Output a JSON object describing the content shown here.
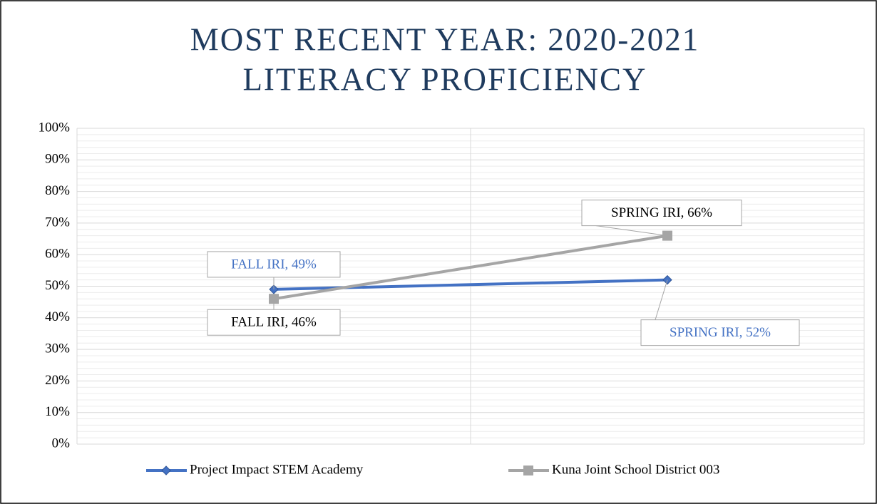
{
  "chart_data": {
    "type": "line",
    "title": [
      "MOST RECENT YEAR: 2020-2021",
      "LITERACY PROFICIENCY"
    ],
    "categories": [
      "FALL IRI",
      "SPRING IRI"
    ],
    "series": [
      {
        "name": "Project Impact STEM Academy",
        "color": "#4472c4",
        "marker": "diamond",
        "values": [
          49,
          52
        ],
        "value_labels": [
          "FALL IRI, 49%",
          "SPRING IRI, 52%"
        ]
      },
      {
        "name": "Kuna Joint School District 003",
        "color": "#a5a5a5",
        "marker": "square",
        "values": [
          46,
          66
        ],
        "value_labels": [
          "FALL IRI, 46%",
          "SPRING IRI, 66%"
        ]
      }
    ],
    "ylim": [
      0,
      100
    ],
    "yticks": [
      {
        "value": 0,
        "label": "0%"
      },
      {
        "value": 10,
        "label": "10%"
      },
      {
        "value": 20,
        "label": "20%"
      },
      {
        "value": 30,
        "label": "30%"
      },
      {
        "value": 40,
        "label": "40%"
      },
      {
        "value": 50,
        "label": "50%"
      },
      {
        "value": 60,
        "label": "60%"
      },
      {
        "value": 70,
        "label": "70%"
      },
      {
        "value": 80,
        "label": "80%"
      },
      {
        "value": 90,
        "label": "90%"
      },
      {
        "value": 100,
        "label": "100%"
      }
    ],
    "grid": true,
    "minor_grid": true,
    "legend": "bottom"
  }
}
